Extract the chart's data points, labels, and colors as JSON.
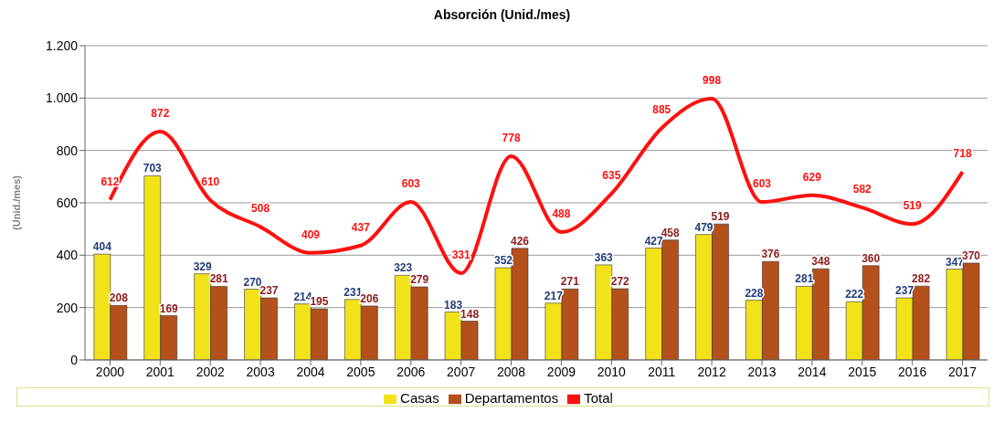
{
  "chart_data": {
    "type": "bar",
    "title": "Absorción (Unid./mes)",
    "ylabel": "(Unid./mes)",
    "categories": [
      "2000",
      "2001",
      "2002",
      "2003",
      "2004",
      "2005",
      "2006",
      "2007",
      "2008",
      "2009",
      "2010",
      "2011",
      "2012",
      "2013",
      "2014",
      "2015",
      "2016",
      "2017"
    ],
    "series": [
      {
        "name": "Casas",
        "color": "#f2e21a",
        "values": [
          404,
          703,
          329,
          270,
          214,
          231,
          323,
          183,
          352,
          217,
          363,
          427,
          479,
          228,
          281,
          222,
          237,
          347
        ]
      },
      {
        "name": "Departamentos",
        "color": "#b4501c",
        "values": [
          208,
          169,
          281,
          237,
          195,
          206,
          279,
          148,
          426,
          271,
          272,
          458,
          519,
          376,
          348,
          360,
          282,
          370
        ]
      },
      {
        "name": "Total",
        "type": "line",
        "color": "#ff1010",
        "values": [
          612,
          872,
          610,
          508,
          409,
          437,
          603,
          331,
          778,
          488,
          635,
          885,
          998,
          603,
          629,
          582,
          519,
          718
        ]
      }
    ],
    "ylim": [
      0,
      1200
    ],
    "yticks": [
      0,
      200,
      400,
      600,
      800,
      {
        "value": 1000,
        "label": "1.000"
      },
      {
        "value": 1200,
        "label": "1.200"
      }
    ],
    "grid": "y",
    "legend": "bottom",
    "data_labels": true,
    "line_style": "solid",
    "marker": "none"
  }
}
